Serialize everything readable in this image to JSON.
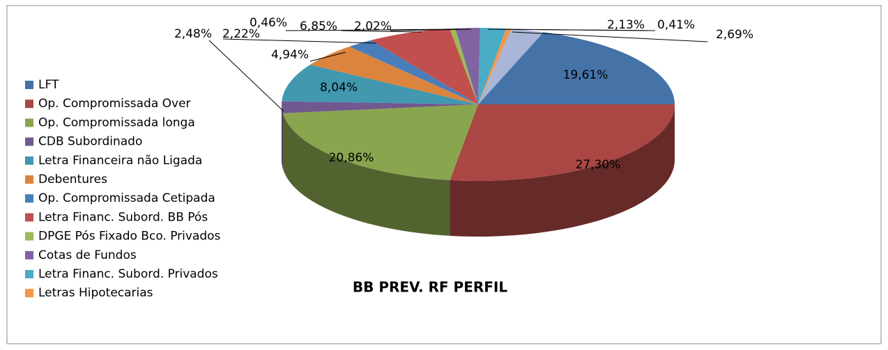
{
  "chart_data": {
    "type": "pie3d",
    "title": "BB PREV. RF PERFIL",
    "categories": [
      "LFT",
      "Op. Compromissada Over",
      "Op. Compromissada longa",
      "CDB Subordinado",
      "Letra Financeira não Ligada",
      "Debentures",
      "Op. Compromissada Cetipada",
      "Letra Financ. Subord. BB Pós",
      "DPGE Pós Fixado Bco. Privados",
      "Cotas de Fundos",
      "Letra Financ. Subord. Privados",
      "Letras Hipotecarias",
      null
    ],
    "values": [
      19.61,
      27.3,
      20.86,
      2.48,
      8.04,
      4.94,
      2.22,
      6.85,
      0.46,
      2.02,
      2.13,
      0.41,
      2.69
    ],
    "value_labels": [
      "19,61%",
      "27,30%",
      "20,86%",
      "2,48%",
      "8,04%",
      "4,94%",
      "2,22%",
      "6,85%",
      "0,46%",
      "2,02%",
      "2,13%",
      "0,41%",
      "2,69%"
    ],
    "colors": [
      "#4572a7",
      "#aa4643",
      "#89a54e",
      "#71588f",
      "#4198af",
      "#db843d",
      "#4a7ebb",
      "#c0504d",
      "#9bbb59",
      "#8064a2",
      "#4bacc6",
      "#f79646",
      "#aab6d8"
    ]
  }
}
